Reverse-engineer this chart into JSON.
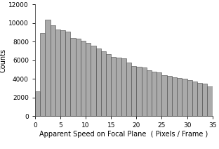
{
  "bar_values": [
    2700,
    8900,
    10400,
    9800,
    9300,
    9200,
    9100,
    8400,
    8300,
    8100,
    7900,
    7600,
    7300,
    7000,
    6700,
    6400,
    6300,
    6200,
    5800,
    5400,
    5300,
    5200,
    4900,
    4800,
    4700,
    4400,
    4300,
    4200,
    4100,
    4000,
    3900,
    3700,
    3600,
    3500,
    3200
  ],
  "bar_color": "#aaaaaa",
  "bar_edge_color": "#444444",
  "bar_edge_width": 0.4,
  "xlabel": "Apparent Speed on Focal Plane  ( Pixels / Frame )",
  "ylabel": "Counts",
  "xlim": [
    0,
    35
  ],
  "ylim": [
    0,
    12000
  ],
  "xticks": [
    0,
    5,
    10,
    15,
    20,
    25,
    30,
    35
  ],
  "yticks": [
    0,
    2000,
    4000,
    6000,
    8000,
    10000,
    12000
  ],
  "xlabel_fontsize": 7.0,
  "ylabel_fontsize": 7.0,
  "tick_fontsize": 6.5,
  "background_color": "#ffffff"
}
